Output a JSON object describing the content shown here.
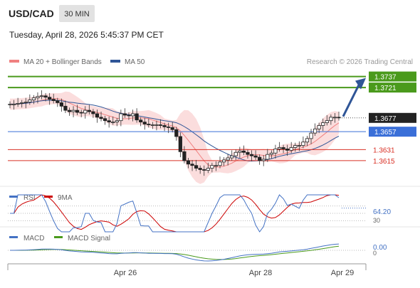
{
  "header": {
    "symbol": "USD/CAD",
    "timeframe": "30 MIN",
    "datetime": "Tuesday, April 28, 2026 5:45:37 PM CET",
    "copyright": "Research © 2026 Trading Central"
  },
  "legend": {
    "ma20": "MA 20 + Bollinger Bands",
    "ma50": "MA 50",
    "ma20_color": "#f08080",
    "ma50_color": "#2f5597"
  },
  "chart_data": [
    {
      "type": "candlestick",
      "y_range": [
        1.3585,
        1.375
      ],
      "last_price": 1.3677,
      "levels": [
        {
          "value": 1.3737,
          "label": "1.3737",
          "kind": "resistance",
          "color": "#4a9a1c"
        },
        {
          "value": 1.3721,
          "label": "1.3721",
          "kind": "resistance",
          "color": "#4a9a1c"
        },
        {
          "value": 1.3657,
          "label": "1.3657",
          "kind": "pivot",
          "color": "#3a6fd8"
        },
        {
          "value": 1.3631,
          "label": "1.3631",
          "kind": "support",
          "color": "#d93025"
        },
        {
          "value": 1.3615,
          "label": "1.3615",
          "kind": "support",
          "color": "#d93025"
        }
      ],
      "x_labels": [
        "Apr 26",
        "Apr 28",
        "Apr 29"
      ],
      "closes": [
        1.3697,
        1.3697,
        1.3698,
        1.3699,
        1.37,
        1.3703,
        1.3706,
        1.3708,
        1.3709,
        1.3707,
        1.3704,
        1.3702,
        1.3699,
        1.3694,
        1.3688,
        1.3686,
        1.3688,
        1.3685,
        1.3684,
        1.3688,
        1.3686,
        1.3683,
        1.3678,
        1.3676,
        1.3673,
        1.3671,
        1.3671,
        1.3673,
        1.3683,
        1.3681,
        1.368,
        1.3683,
        1.3674,
        1.3671,
        1.3668,
        1.3667,
        1.3667,
        1.3667,
        1.3666,
        1.3664,
        1.3663,
        1.366,
        1.365,
        1.3628,
        1.3615,
        1.361,
        1.3608,
        1.3604,
        1.3602,
        1.3601,
        1.3604,
        1.3608,
        1.3608,
        1.3613,
        1.3616,
        1.3619,
        1.3622,
        1.3627,
        1.3629,
        1.3627,
        1.3624,
        1.3622,
        1.362,
        1.3615,
        1.3617,
        1.3624,
        1.3626,
        1.3632,
        1.3634,
        1.3632,
        1.363,
        1.3634,
        1.3637,
        1.3637,
        1.3642,
        1.3647,
        1.3655,
        1.3661,
        1.3666,
        1.367,
        1.3673,
        1.3678,
        1.3678,
        1.3677
      ],
      "annotation": "arrow-up-to-1.3737"
    },
    {
      "type": "line",
      "title": "RSI",
      "series": [
        {
          "name": "RSI",
          "color": "#4472c4"
        },
        {
          "name": "9MA",
          "color": "#cc0000"
        }
      ],
      "last_value": 64.2,
      "last_label": "64.20",
      "ref_level_label": "30"
    },
    {
      "type": "line",
      "title": "MACD",
      "series": [
        {
          "name": "MACD",
          "color": "#4472c4"
        },
        {
          "name": "MACD Signal",
          "color": "#4a9a1c"
        }
      ],
      "last_value": 0.0,
      "last_label": "0.00",
      "zero_label": "0"
    }
  ]
}
